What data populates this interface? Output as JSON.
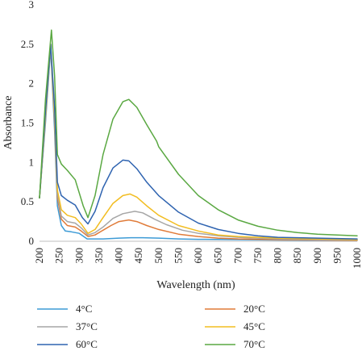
{
  "chart_data": {
    "type": "line",
    "title": "",
    "xlabel": "Wavelength (nm)",
    "ylabel": "Absorbance",
    "xlim": [
      200,
      1000
    ],
    "ylim": [
      0,
      3
    ],
    "x_ticks": [
      200,
      250,
      300,
      350,
      400,
      450,
      500,
      550,
      600,
      650,
      700,
      750,
      800,
      850,
      900,
      950,
      1000
    ],
    "y_ticks": [
      0,
      0.5,
      1,
      1.5,
      2,
      2.5,
      3
    ],
    "y_tick_labels": [
      "0",
      "0.5",
      "1",
      "1.5",
      "2",
      "2.5",
      "3"
    ],
    "grid": false,
    "legend_placement": "bottom",
    "series": [
      {
        "name": "4°C",
        "color": "#3d9bd6",
        "points": [
          [
            200,
            0.55
          ],
          [
            215,
            1.5
          ],
          [
            228,
            2.45
          ],
          [
            238,
            1.4
          ],
          [
            245,
            0.45
          ],
          [
            255,
            0.2
          ],
          [
            265,
            0.13
          ],
          [
            280,
            0.12
          ],
          [
            300,
            0.1
          ],
          [
            320,
            0.03
          ],
          [
            340,
            0.03
          ],
          [
            360,
            0.03
          ],
          [
            380,
            0.035
          ],
          [
            400,
            0.04
          ],
          [
            430,
            0.045
          ],
          [
            460,
            0.045
          ],
          [
            500,
            0.04
          ],
          [
            550,
            0.03
          ],
          [
            600,
            0.025
          ],
          [
            700,
            0.02
          ],
          [
            800,
            0.015
          ],
          [
            900,
            0.012
          ],
          [
            1000,
            0.01
          ]
        ]
      },
      {
        "name": "20°C",
        "color": "#e07b39",
        "points": [
          [
            200,
            0.55
          ],
          [
            215,
            1.55
          ],
          [
            228,
            2.5
          ],
          [
            238,
            1.5
          ],
          [
            245,
            0.55
          ],
          [
            255,
            0.28
          ],
          [
            270,
            0.2
          ],
          [
            290,
            0.18
          ],
          [
            305,
            0.13
          ],
          [
            322,
            0.06
          ],
          [
            340,
            0.08
          ],
          [
            360,
            0.14
          ],
          [
            380,
            0.2
          ],
          [
            400,
            0.25
          ],
          [
            425,
            0.27
          ],
          [
            445,
            0.25
          ],
          [
            470,
            0.2
          ],
          [
            500,
            0.15
          ],
          [
            550,
            0.09
          ],
          [
            600,
            0.06
          ],
          [
            650,
            0.04
          ],
          [
            700,
            0.03
          ],
          [
            800,
            0.02
          ],
          [
            900,
            0.015
          ],
          [
            1000,
            0.01
          ]
        ]
      },
      {
        "name": "37°C",
        "color": "#a6a6a6",
        "points": [
          [
            200,
            0.55
          ],
          [
            215,
            1.55
          ],
          [
            228,
            2.5
          ],
          [
            238,
            1.55
          ],
          [
            245,
            0.6
          ],
          [
            255,
            0.32
          ],
          [
            270,
            0.25
          ],
          [
            290,
            0.23
          ],
          [
            305,
            0.17
          ],
          [
            322,
            0.08
          ],
          [
            340,
            0.11
          ],
          [
            360,
            0.18
          ],
          [
            385,
            0.29
          ],
          [
            410,
            0.35
          ],
          [
            440,
            0.38
          ],
          [
            460,
            0.36
          ],
          [
            490,
            0.28
          ],
          [
            520,
            0.21
          ],
          [
            560,
            0.14
          ],
          [
            600,
            0.1
          ],
          [
            650,
            0.07
          ],
          [
            700,
            0.05
          ],
          [
            800,
            0.03
          ],
          [
            900,
            0.02
          ],
          [
            1000,
            0.015
          ]
        ]
      },
      {
        "name": "45°C",
        "color": "#f2bd21",
        "points": [
          [
            200,
            0.55
          ],
          [
            215,
            1.6
          ],
          [
            228,
            2.5
          ],
          [
            238,
            1.6
          ],
          [
            245,
            0.65
          ],
          [
            255,
            0.4
          ],
          [
            270,
            0.33
          ],
          [
            290,
            0.3
          ],
          [
            305,
            0.22
          ],
          [
            322,
            0.1
          ],
          [
            340,
            0.15
          ],
          [
            360,
            0.3
          ],
          [
            385,
            0.48
          ],
          [
            410,
            0.58
          ],
          [
            428,
            0.6
          ],
          [
            445,
            0.56
          ],
          [
            470,
            0.45
          ],
          [
            500,
            0.33
          ],
          [
            550,
            0.2
          ],
          [
            600,
            0.13
          ],
          [
            650,
            0.08
          ],
          [
            700,
            0.06
          ],
          [
            800,
            0.04
          ],
          [
            900,
            0.03
          ],
          [
            1000,
            0.02
          ]
        ]
      },
      {
        "name": "60°C",
        "color": "#2e63b0",
        "points": [
          [
            200,
            0.55
          ],
          [
            215,
            1.65
          ],
          [
            228,
            2.5
          ],
          [
            238,
            1.7
          ],
          [
            245,
            0.75
          ],
          [
            255,
            0.58
          ],
          [
            270,
            0.52
          ],
          [
            290,
            0.46
          ],
          [
            308,
            0.3
          ],
          [
            322,
            0.22
          ],
          [
            340,
            0.38
          ],
          [
            360,
            0.68
          ],
          [
            385,
            0.93
          ],
          [
            410,
            1.03
          ],
          [
            425,
            1.02
          ],
          [
            445,
            0.92
          ],
          [
            470,
            0.75
          ],
          [
            500,
            0.58
          ],
          [
            550,
            0.37
          ],
          [
            600,
            0.23
          ],
          [
            650,
            0.15
          ],
          [
            700,
            0.1
          ],
          [
            750,
            0.07
          ],
          [
            800,
            0.05
          ],
          [
            900,
            0.04
          ],
          [
            1000,
            0.03
          ]
        ]
      },
      {
        "name": "70°C",
        "color": "#5aa842",
        "points": [
          [
            200,
            0.55
          ],
          [
            215,
            1.8
          ],
          [
            230,
            2.68
          ],
          [
            238,
            2.1
          ],
          [
            245,
            1.1
          ],
          [
            255,
            0.98
          ],
          [
            270,
            0.9
          ],
          [
            290,
            0.78
          ],
          [
            310,
            0.45
          ],
          [
            322,
            0.3
          ],
          [
            340,
            0.58
          ],
          [
            360,
            1.1
          ],
          [
            385,
            1.55
          ],
          [
            410,
            1.77
          ],
          [
            425,
            1.8
          ],
          [
            445,
            1.7
          ],
          [
            470,
            1.48
          ],
          [
            495,
            1.27
          ],
          [
            500,
            1.2
          ],
          [
            550,
            0.85
          ],
          [
            600,
            0.58
          ],
          [
            650,
            0.4
          ],
          [
            700,
            0.27
          ],
          [
            750,
            0.19
          ],
          [
            800,
            0.14
          ],
          [
            850,
            0.11
          ],
          [
            900,
            0.09
          ],
          [
            950,
            0.08
          ],
          [
            1000,
            0.07
          ]
        ]
      }
    ]
  }
}
